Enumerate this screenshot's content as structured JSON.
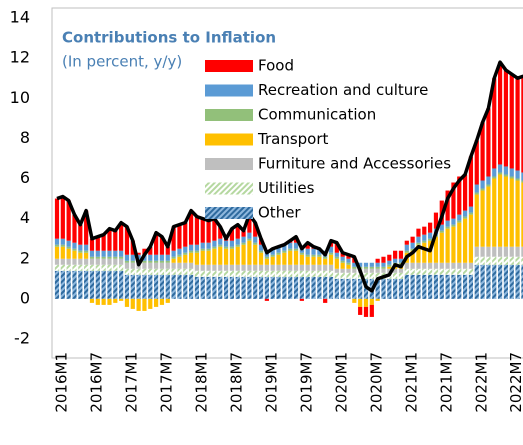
{
  "chart_data": {
    "type": "stacked_bar_line",
    "title": "Contributions to Inflation",
    "subtitle": "(In percent, y/y)",
    "categories": [
      "2016M1",
      null,
      null,
      null,
      null,
      null,
      "2016M7",
      null,
      null,
      null,
      null,
      null,
      "2017M1",
      null,
      null,
      null,
      null,
      null,
      "2017M7",
      null,
      null,
      null,
      null,
      null,
      "2018M1",
      null,
      null,
      null,
      null,
      null,
      "2018M7",
      null,
      null,
      null,
      null,
      null,
      "2019M1",
      null,
      null,
      null,
      null,
      null,
      "2019M7",
      null,
      null,
      null,
      null,
      null,
      "2020M1",
      null,
      null,
      null,
      null,
      null,
      "2020M7",
      null,
      null,
      null,
      null,
      null,
      "2021M1",
      null,
      null,
      null,
      null,
      null,
      "2021M7",
      null,
      null,
      null,
      null,
      null,
      "2022M1",
      null,
      null,
      null,
      null,
      null,
      "2022M7",
      null,
      null
    ],
    "ylim": [
      -2,
      14
    ],
    "yticks": [
      -2,
      0,
      2,
      4,
      6,
      8,
      10,
      12,
      14
    ],
    "series": [
      {
        "name": "Other",
        "color": "#2e6a9e",
        "hatch": "#8fb8de",
        "values": [
          1.4,
          1.4,
          1.4,
          1.4,
          1.4,
          1.4,
          1.4,
          1.4,
          1.4,
          1.4,
          1.4,
          1.4,
          1.2,
          1.2,
          1.2,
          1.2,
          1.2,
          1.2,
          1.2,
          1.2,
          1.2,
          1.2,
          1.2,
          1.2,
          1.1,
          1.1,
          1.1,
          1.1,
          1.1,
          1.1,
          1.1,
          1.1,
          1.1,
          1.1,
          1.1,
          1.1,
          1.1,
          1.1,
          1.1,
          1.1,
          1.1,
          1.1,
          1.1,
          1.1,
          1.1,
          1.1,
          1.1,
          1.1,
          1.0,
          1.0,
          1.0,
          1.0,
          1.0,
          1.0,
          1.0,
          1.0,
          1.0,
          1.0,
          1.0,
          1.0,
          1.2,
          1.2,
          1.2,
          1.2,
          1.2,
          1.2,
          1.2,
          1.2,
          1.2,
          1.2,
          1.2,
          1.2,
          1.7,
          1.7,
          1.7,
          1.7,
          1.7,
          1.7,
          1.7,
          1.7,
          1.7
        ]
      },
      {
        "name": "Utilities",
        "color": "#ffffff",
        "hatch": "#b5d8a0",
        "values": [
          0.3,
          0.3,
          0.3,
          0.3,
          0.3,
          0.3,
          0.3,
          0.3,
          0.3,
          0.3,
          0.3,
          0.3,
          0.3,
          0.3,
          0.3,
          0.3,
          0.3,
          0.3,
          0.3,
          0.3,
          0.3,
          0.3,
          0.3,
          0.3,
          0.3,
          0.3,
          0.3,
          0.3,
          0.3,
          0.3,
          0.3,
          0.3,
          0.3,
          0.3,
          0.3,
          0.3,
          0.3,
          0.3,
          0.3,
          0.3,
          0.3,
          0.3,
          0.3,
          0.3,
          0.3,
          0.3,
          0.3,
          0.3,
          0.3,
          0.3,
          0.3,
          0.3,
          0.3,
          0.3,
          0.3,
          0.3,
          0.3,
          0.3,
          0.3,
          0.3,
          0.3,
          0.3,
          0.3,
          0.3,
          0.3,
          0.3,
          0.3,
          0.3,
          0.3,
          0.3,
          0.3,
          0.3,
          0.4,
          0.4,
          0.4,
          0.4,
          0.4,
          0.4,
          0.4,
          0.4,
          0.4
        ]
      },
      {
        "name": "Furniture and Accessories",
        "color": "#bfbfbf",
        "values": [
          0.3,
          0.3,
          0.3,
          0.3,
          0.3,
          0.3,
          0.3,
          0.3,
          0.3,
          0.3,
          0.3,
          0.3,
          0.3,
          0.3,
          0.3,
          0.3,
          0.3,
          0.3,
          0.3,
          0.3,
          0.3,
          0.3,
          0.3,
          0.3,
          0.3,
          0.3,
          0.3,
          0.3,
          0.3,
          0.3,
          0.3,
          0.3,
          0.3,
          0.3,
          0.3,
          0.3,
          0.3,
          0.3,
          0.3,
          0.3,
          0.3,
          0.3,
          0.3,
          0.3,
          0.3,
          0.3,
          0.3,
          0.3,
          0.2,
          0.2,
          0.2,
          0.2,
          0.2,
          0.2,
          0.2,
          0.2,
          0.2,
          0.2,
          0.2,
          0.2,
          0.3,
          0.3,
          0.3,
          0.3,
          0.3,
          0.3,
          0.3,
          0.3,
          0.3,
          0.3,
          0.3,
          0.3,
          0.5,
          0.5,
          0.5,
          0.5,
          0.5,
          0.5,
          0.5,
          0.5,
          0.5
        ]
      },
      {
        "name": "Transport",
        "color": "#ffc000",
        "values": [
          0.6,
          0.6,
          0.5,
          0.4,
          0.3,
          0.3,
          -0.2,
          -0.3,
          -0.3,
          -0.3,
          -0.2,
          -0.1,
          -0.4,
          -0.5,
          -0.6,
          -0.6,
          -0.5,
          -0.4,
          -0.3,
          -0.2,
          0.2,
          0.3,
          0.4,
          0.5,
          0.6,
          0.7,
          0.7,
          0.8,
          0.9,
          0.8,
          0.8,
          0.9,
          1.0,
          1.2,
          1.0,
          0.6,
          0.3,
          0.4,
          0.5,
          0.6,
          0.7,
          0.7,
          0.5,
          0.4,
          0.4,
          0.4,
          0.3,
          0.5,
          0.5,
          0.3,
          0.2,
          -0.2,
          -0.4,
          -0.4,
          -0.3,
          -0.1,
          0.0,
          0.1,
          0.2,
          0.2,
          0.5,
          0.6,
          0.9,
          1.0,
          1.1,
          1.3,
          1.5,
          1.7,
          1.8,
          2.0,
          2.2,
          2.4,
          2.6,
          2.8,
          3.0,
          3.4,
          3.6,
          3.5,
          3.4,
          3.3,
          3.2
        ]
      },
      {
        "name": "Communication",
        "color": "#92c07a",
        "values": [
          0.1,
          0.1,
          0.1,
          0.1,
          0.1,
          0.1,
          0.1,
          0.1,
          0.1,
          0.1,
          0.1,
          0.1,
          0.1,
          0.1,
          0.1,
          0.1,
          0.1,
          0.1,
          0.1,
          0.1,
          0.1,
          0.1,
          0.1,
          0.1,
          0.1,
          0.1,
          0.1,
          0.1,
          0.1,
          0.1,
          0.1,
          0.1,
          0.1,
          0.1,
          0.1,
          0.1,
          0.1,
          0.1,
          0.1,
          0.1,
          0.1,
          0.1,
          0.1,
          0.1,
          0.1,
          0.1,
          0.1,
          0.1,
          0.1,
          0.1,
          0.1,
          0.1,
          0.1,
          0.1,
          0.1,
          0.1,
          0.1,
          0.1,
          0.1,
          0.1,
          0.1,
          0.1,
          0.1,
          0.1,
          0.1,
          0.1,
          0.1,
          0.1,
          0.1,
          0.1,
          0.1,
          0.1,
          0.1,
          0.1,
          0.1,
          0.1,
          0.1,
          0.1,
          0.1,
          0.1,
          0.1
        ]
      },
      {
        "name": "Recreation and culture",
        "color": "#5b9bd5",
        "values": [
          0.3,
          0.3,
          0.3,
          0.3,
          0.3,
          0.3,
          0.3,
          0.3,
          0.3,
          0.3,
          0.3,
          0.3,
          0.3,
          0.3,
          0.3,
          0.3,
          0.3,
          0.3,
          0.3,
          0.3,
          0.3,
          0.3,
          0.3,
          0.3,
          0.3,
          0.3,
          0.3,
          0.3,
          0.3,
          0.3,
          0.3,
          0.3,
          0.3,
          0.3,
          0.3,
          0.3,
          0.3,
          0.3,
          0.3,
          0.3,
          0.3,
          0.3,
          0.3,
          0.3,
          0.3,
          0.3,
          0.3,
          0.3,
          0.2,
          0.2,
          0.2,
          0.2,
          0.2,
          0.2,
          0.2,
          0.2,
          0.2,
          0.2,
          0.2,
          0.2,
          0.3,
          0.3,
          0.3,
          0.3,
          0.3,
          0.3,
          0.3,
          0.3,
          0.3,
          0.3,
          0.3,
          0.3,
          0.4,
          0.4,
          0.4,
          0.4,
          0.4,
          0.4,
          0.4,
          0.4,
          0.4
        ]
      },
      {
        "name": "Food",
        "color": "#ff0000",
        "values": [
          2.0,
          2.1,
          2.0,
          1.4,
          1.0,
          1.7,
          0.6,
          0.7,
          0.8,
          1.1,
          1.0,
          1.4,
          1.4,
          0.7,
          0.1,
          0.3,
          0.4,
          1.1,
          0.9,
          0.4,
          1.2,
          1.2,
          1.2,
          1.7,
          1.4,
          1.2,
          1.1,
          1.1,
          0.6,
          0.1,
          0.6,
          0.7,
          0.3,
          0.9,
          0.7,
          0.3,
          -0.1,
          0.0,
          0.0,
          0.0,
          0.1,
          0.3,
          -0.1,
          0.3,
          0.1,
          0.0,
          -0.2,
          0.3,
          0.5,
          0.2,
          0.2,
          0.3,
          -0.4,
          -0.5,
          -0.6,
          0.2,
          0.3,
          0.3,
          0.4,
          0.4,
          0.2,
          0.3,
          0.4,
          0.4,
          0.5,
          0.8,
          1.2,
          1.5,
          1.8,
          1.9,
          1.8,
          2.5,
          2.2,
          2.9,
          3.4,
          4.5,
          5.1,
          4.8,
          4.7,
          4.6,
          4.8
        ]
      }
    ],
    "line": {
      "color": "#000000",
      "values": [
        5.0,
        5.1,
        4.9,
        4.2,
        3.7,
        4.4,
        3.0,
        3.1,
        3.2,
        3.5,
        3.4,
        3.8,
        3.6,
        2.9,
        1.7,
        2.2,
        2.6,
        3.3,
        3.1,
        2.6,
        3.6,
        3.7,
        3.8,
        4.4,
        4.1,
        4.0,
        3.9,
        4.0,
        3.6,
        3.0,
        3.5,
        3.7,
        3.4,
        4.2,
        3.8,
        3.0,
        2.3,
        2.5,
        2.6,
        2.7,
        2.9,
        3.1,
        2.5,
        2.8,
        2.6,
        2.5,
        2.2,
        2.9,
        2.8,
        2.3,
        2.2,
        2.1,
        1.4,
        0.6,
        0.4,
        1.0,
        1.1,
        1.2,
        1.7,
        1.6,
        2.1,
        2.3,
        2.6,
        2.5,
        2.4,
        3.3,
        4.1,
        5.0,
        5.5,
        5.9,
        6.2,
        7.1,
        7.9,
        8.8,
        9.5,
        11.0,
        11.8,
        11.4,
        11.2,
        11.0,
        11.1
      ]
    }
  }
}
